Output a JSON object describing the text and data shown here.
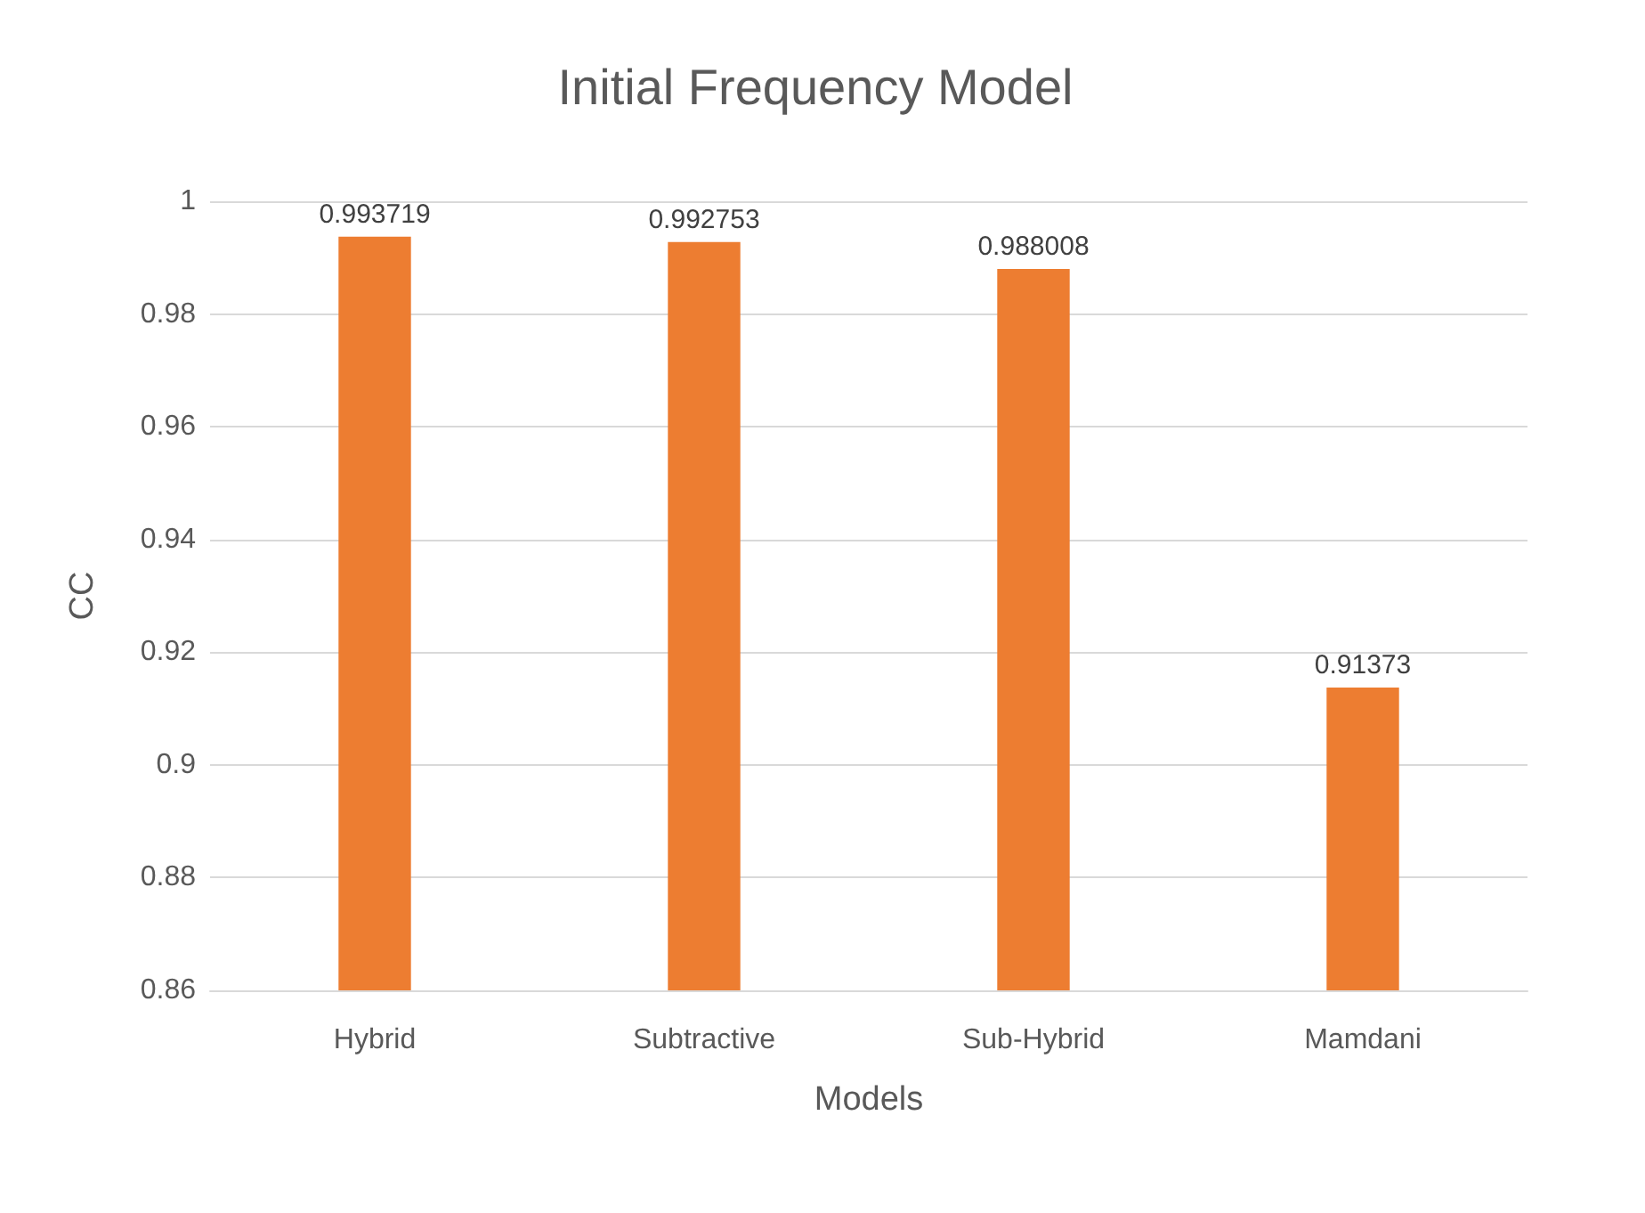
{
  "chart_data": {
    "type": "bar",
    "title": "Initial Frequency Model",
    "xlabel": "Models",
    "ylabel": "CC",
    "categories": [
      "Hybrid",
      "Subtractive",
      "Sub-Hybrid",
      "Mamdani"
    ],
    "values": [
      0.993719,
      0.992753,
      0.988008,
      0.91373
    ],
    "color": "#ed7d31",
    "ylim": [
      0.86,
      1
    ],
    "yticks": [
      0.86,
      0.88,
      0.9,
      0.92,
      0.94,
      0.96,
      0.98,
      1
    ],
    "grid": "y",
    "data_labels": true
  }
}
